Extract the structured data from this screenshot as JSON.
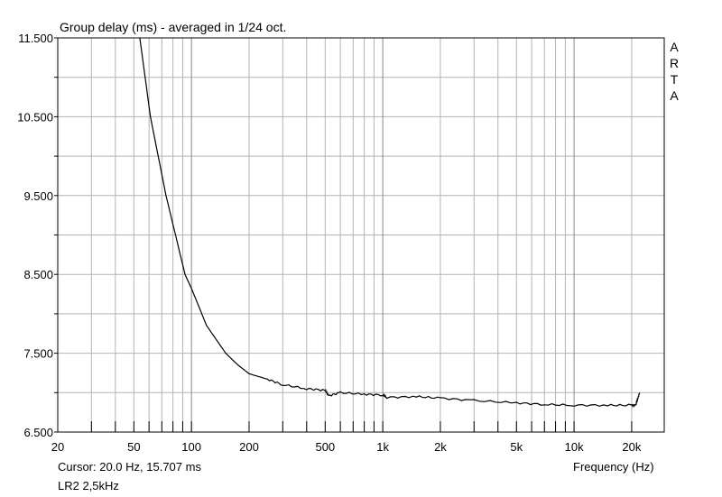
{
  "chart_data": {
    "type": "line",
    "title": "Group delay (ms) - averaged in 1/24 oct.",
    "xlabel": "Frequency (Hz)",
    "ylabel": "Group delay (ms)",
    "xscale": "log",
    "xlim": [
      20,
      29600
    ],
    "ylim": [
      6.5,
      11.5
    ],
    "grid": true,
    "y_ticks": [
      "11.500",
      "10.500",
      "9.500",
      "8.500",
      "7.500",
      "6.500"
    ],
    "y_tick_values": [
      11.5,
      10.5,
      9.5,
      8.5,
      7.5,
      6.5
    ],
    "x_ticks": [
      "20",
      "50",
      "100",
      "200",
      "500",
      "1k",
      "2k",
      "5k",
      "10k",
      "20k"
    ],
    "x_tick_values": [
      20,
      50,
      100,
      200,
      500,
      1000,
      2000,
      5000,
      10000,
      20000
    ],
    "side_label": [
      "A",
      "R",
      "T",
      "A"
    ],
    "series": [
      {
        "name": "LR2 2,5kHz",
        "color": "#000000",
        "x": [
          53.7,
          61,
          73.6,
          92.5,
          100,
          120,
          151,
          175,
          200,
          250,
          300,
          400,
          500,
          520,
          600,
          800,
          1000,
          1050,
          1500,
          2000,
          3000,
          5000,
          7000,
          10000,
          15000,
          20000,
          21000,
          21500,
          22000
        ],
        "y": [
          11.5,
          10.5,
          9.5,
          8.5,
          8.32,
          7.85,
          7.5,
          7.35,
          7.24,
          7.17,
          7.1,
          7.05,
          7.03,
          6.96,
          7.0,
          6.98,
          6.97,
          6.94,
          6.95,
          6.93,
          6.9,
          6.87,
          6.85,
          6.84,
          6.84,
          6.84,
          6.84,
          6.92,
          7.0
        ]
      }
    ]
  },
  "cursor_text": "Cursor: 20.0 Hz, 15.707 ms",
  "measurement_label": "LR2 2,5kHz"
}
